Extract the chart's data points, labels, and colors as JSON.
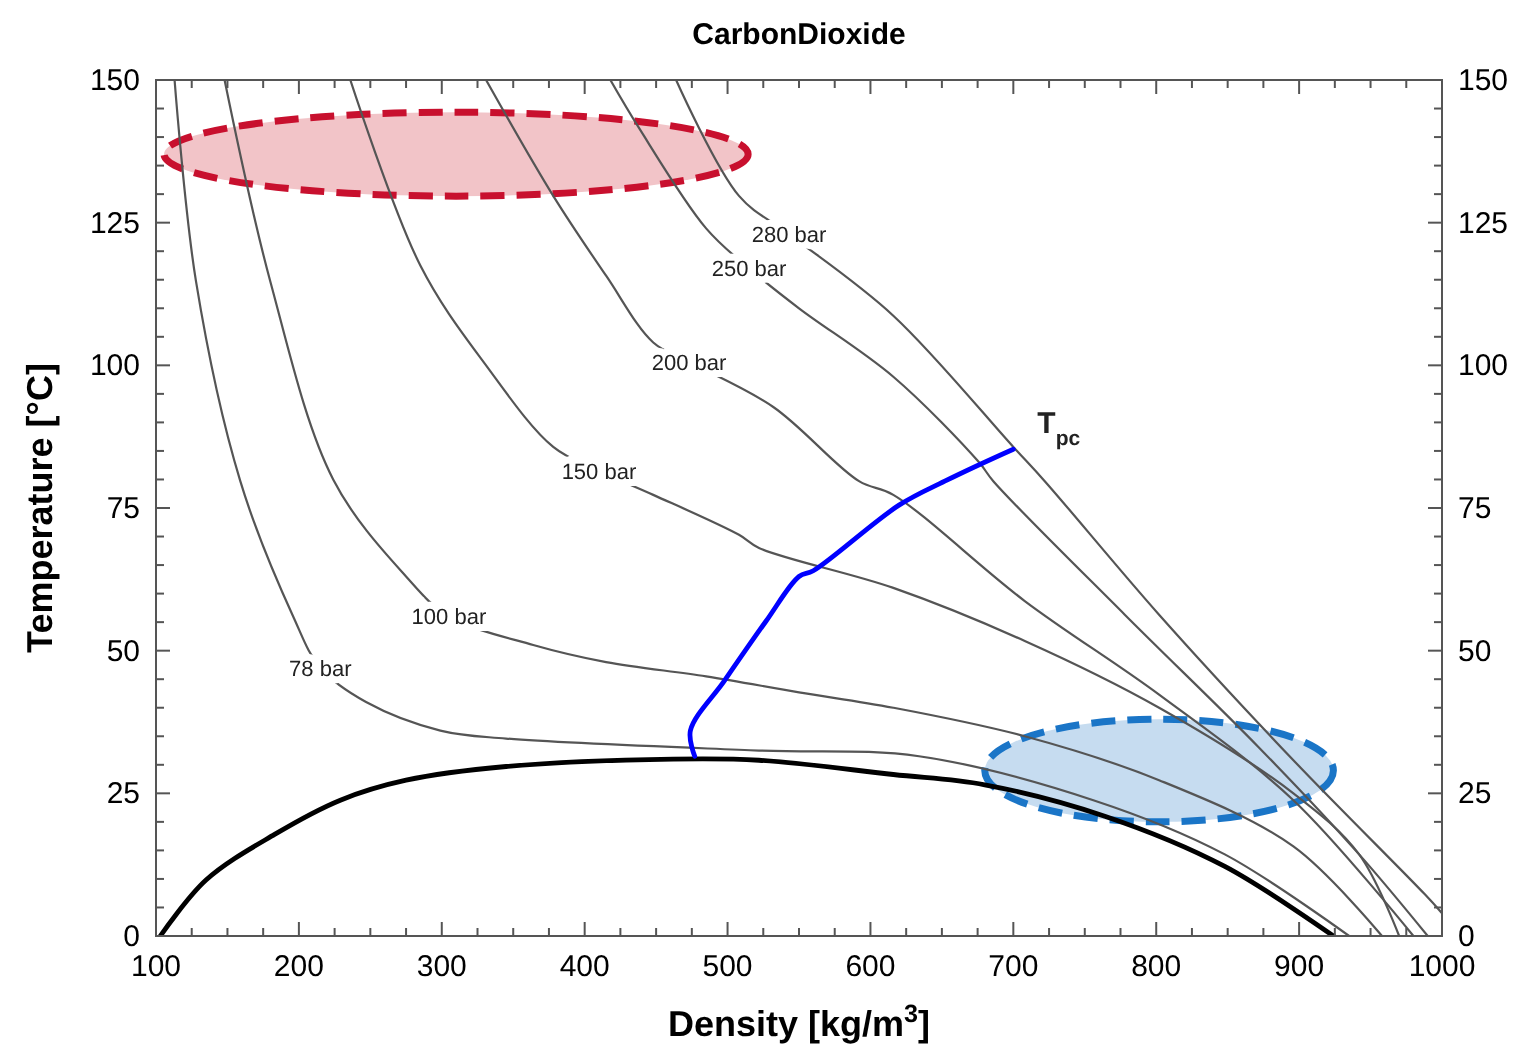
{
  "chart_data": {
    "type": "line",
    "title": "CarbonDioxide",
    "xlabel": "Density [kg/m$^{3}$]",
    "ylabel": "Temperature [°C]",
    "xlim": [
      100,
      1000
    ],
    "xticks": [
      100,
      200,
      300,
      400,
      500,
      600,
      700,
      800,
      900,
      1000
    ],
    "ylim": [
      0,
      150
    ],
    "yticks": [
      0,
      25,
      50,
      75,
      100,
      125,
      150
    ],
    "y2lim": [
      0,
      150
    ],
    "y2ticks": [
      0,
      25,
      50,
      75,
      100,
      125,
      150
    ],
    "grid": false,
    "marker": "none",
    "line_style": "solid",
    "series": [
      {
        "color": "#000000",
        "x": [
          103,
          135,
          183,
          229,
          275,
          345,
          462,
          522,
          616,
          680,
          764,
          848,
          924
        ],
        "values": [
          0,
          9.8,
          17.8,
          23.8,
          27.3,
          29.7,
          31,
          30.8,
          28.3,
          26.5,
          21,
          12.2,
          0
        ]
      },
      {
        "color": "#555555",
        "x": [
          113,
          128,
          159,
          196,
          215,
          247,
          299,
          345,
          522,
          634,
          756,
          848,
          935
        ],
        "values": [
          150,
          114.7,
          79.7,
          56,
          47,
          41,
          36,
          34.6,
          32.5,
          31.5,
          23.8,
          14.3,
          0
        ]
      },
      {
        "color": "#555555",
        "x": [
          148,
          180,
          224,
          275,
          305,
          364,
          415,
          485,
          550,
          616,
          708,
          802,
          896,
          958
        ],
        "values": [
          150,
          114.7,
          80,
          63,
          56,
          51,
          48,
          45.5,
          42.7,
          40,
          35,
          27.3,
          15.7,
          0
        ]
      },
      {
        "color": "#555555",
        "x": [
          236,
          285,
          331,
          378,
          410,
          448,
          508,
          522,
          616,
          708,
          802,
          896,
          942,
          970
        ],
        "values": [
          150,
          117.5,
          100,
          85.7,
          81.5,
          77.3,
          70.3,
          68,
          61,
          51.7,
          40,
          25,
          14.3,
          0
        ]
      },
      {
        "color": "#555555",
        "x": [
          331,
          378,
          415,
          448,
          473,
          532,
          592,
          616,
          708,
          802,
          896,
          980
        ],
        "values": [
          150,
          129.7,
          115.7,
          104,
          100.6,
          92.7,
          79.7,
          77.3,
          58.7,
          42.3,
          23.8,
          0
        ]
      },
      {
        "color": "#555555",
        "x": [
          418,
          438,
          485,
          515,
          550,
          616,
          676,
          686,
          778,
          872,
          942,
          990
        ],
        "values": [
          150,
          141.6,
          124,
          117,
          110,
          98,
          83,
          79.7,
          56.3,
          33,
          14.3,
          0
        ]
      },
      {
        "color": "#555555",
        "x": [
          464,
          508,
          543,
          616,
          700,
          722,
          802,
          896,
          988,
          1000
        ],
        "values": [
          150,
          129.7,
          123,
          108.7,
          85.7,
          79.7,
          56.3,
          30.8,
          7.3,
          4
        ]
      },
      {
        "color": "#0000ff",
        "x": [
          477,
          474,
          498,
          527,
          550,
          560,
          620,
          652,
          700
        ],
        "values": [
          31.5,
          36,
          44.8,
          55.2,
          63,
          64,
          75.5,
          79.7,
          85.3
        ]
      }
    ],
    "annotations": [
      {
        "text": "78 bar",
        "x": 215,
        "y": 47
      },
      {
        "text": "100 bar",
        "x": 305,
        "y": 56
      },
      {
        "text": "150 bar",
        "x": 410,
        "y": 81.5
      },
      {
        "text": "200 bar",
        "x": 473,
        "y": 100.6
      },
      {
        "text": "250 bar",
        "x": 515,
        "y": 117
      },
      {
        "text": "280 bar",
        "x": 543,
        "y": 123
      },
      {
        "text": "T$_{pc}$",
        "x": 700,
        "y": 85.3
      }
    ]
  }
}
